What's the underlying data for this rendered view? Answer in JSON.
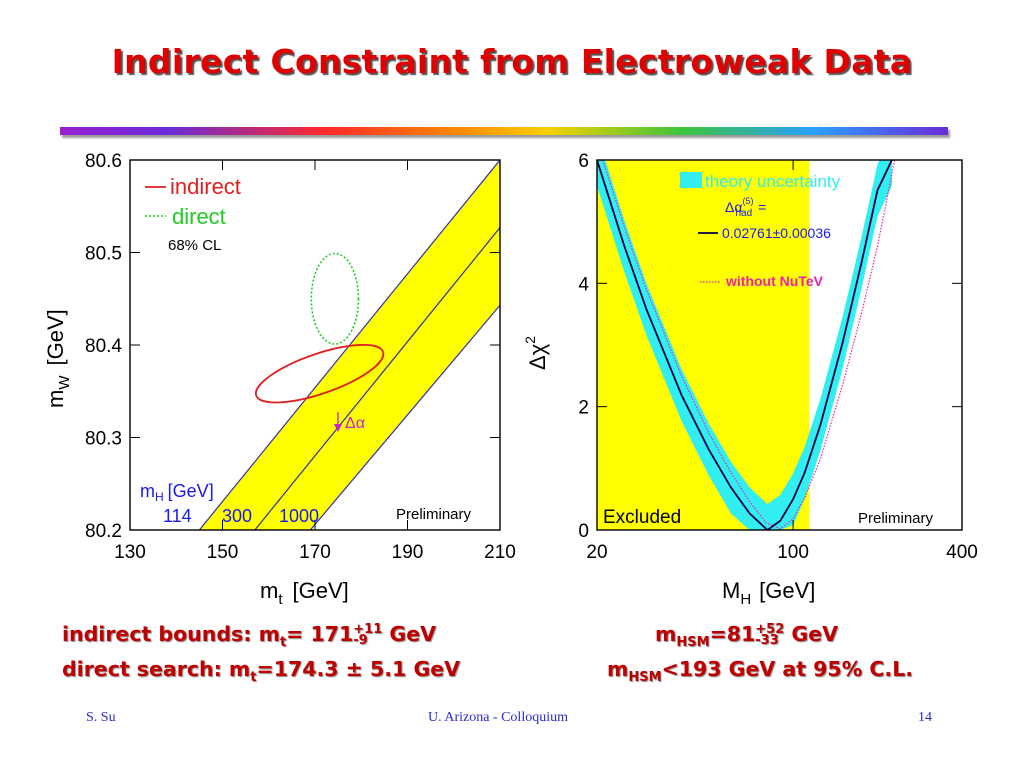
{
  "slide": {
    "title": "Indirect Constraint from Electroweak Data",
    "footer": {
      "author": "S. Su",
      "venue": "U. Arizona - Colloquium",
      "page": "14"
    },
    "summary": {
      "indirect": {
        "label": "indirect bounds: m",
        "sub": "t",
        "eq": "= 171",
        "up": "+11",
        "down": "-9",
        "unit": " GeV"
      },
      "direct": {
        "label": "direct search: m",
        "sub": "t",
        "value": "=174.3 ± 5.1 GeV"
      },
      "mhsm": {
        "label": "m",
        "sub": "HSM",
        "eq": "=81",
        "up": "+52",
        "down": "-33",
        "unit": " GeV"
      },
      "limit": {
        "label": "m",
        "sub": "HSM",
        "value": "<193 GeV at 95% C.L."
      }
    }
  },
  "chart_data": [
    {
      "type": "contour",
      "xlabel": "m",
      "xlabel_sub": "t",
      "xlabel_unit": "[GeV]",
      "ylabel": "m",
      "ylabel_sub": "W",
      "ylabel_unit": "[GeV]",
      "xlim": [
        130,
        210
      ],
      "ylim": [
        80.2,
        80.6
      ],
      "xticks": [
        "130",
        "150",
        "170",
        "190",
        "210"
      ],
      "yticks": [
        "80.2",
        "80.3",
        "80.4",
        "80.5",
        "80.6"
      ],
      "legend": [
        {
          "name": "indirect",
          "color": "#e02020",
          "style": "solid"
        },
        {
          "name": "direct",
          "color": "#22cc22",
          "style": "dotted"
        }
      ],
      "cl_label": "68% CL",
      "mh_label": "m",
      "mh_label_sub": "H",
      "mh_label_unit": "[GeV]",
      "mh_values": [
        "114",
        "300",
        "1000"
      ],
      "sm_band_color": "#ffff00",
      "sm_lines": [
        {
          "mh": "114",
          "points": [
            [
              145,
              80.2
            ],
            [
              210,
              80.6
            ]
          ]
        },
        {
          "mh": "300",
          "points": [
            [
              157,
              80.2
            ],
            [
              210,
              80.527
            ]
          ]
        },
        {
          "mh": "1000",
          "points": [
            [
              169,
              80.2
            ],
            [
              210,
              80.443
            ]
          ]
        }
      ],
      "indirect_ellipse": {
        "center": [
          171,
          80.369
        ],
        "half_width": 14.5,
        "half_height": 0.0215,
        "rotation_deg": -19
      },
      "direct_ellipse": {
        "center": [
          174.3,
          80.45
        ],
        "half_width": 5.1,
        "half_height": 0.049
      },
      "delta_alpha_label": "Δα",
      "annotation": "Preliminary"
    },
    {
      "type": "line",
      "xlabel": "M",
      "xlabel_sub": "H",
      "xlabel_unit": "[GeV]",
      "ylabel": "Δχ",
      "ylabel_sup": "2",
      "xscale": "log",
      "xlim": [
        20,
        400
      ],
      "ylim": [
        0,
        6
      ],
      "xticks": [
        "20",
        "100",
        "400"
      ],
      "yticks": [
        "0",
        "2",
        "4",
        "6"
      ],
      "excluded_region": [
        20,
        114.4
      ],
      "excluded_label": "Excluded",
      "annotation": "Preliminary",
      "band_color": "#33eef0",
      "legend": [
        {
          "name": "theory uncertainty",
          "color": "#33eef0"
        },
        {
          "name": "0.02761±0.00036",
          "color": "#000044"
        },
        {
          "name": "without NuTeV",
          "color": "#ee22aa"
        }
      ],
      "legend_alpha_label": "Δα",
      "legend_alpha_sup": "(5)",
      "legend_alpha_sub": "had",
      "legend_alpha_eq": "=",
      "curve": {
        "x": [
          20,
          25,
          30,
          40,
          50,
          60,
          70,
          81,
          90,
          100,
          110,
          125,
          150,
          175,
          200,
          225
        ],
        "y": [
          6.0,
          4.61,
          3.58,
          2.19,
          1.31,
          0.69,
          0.27,
          0.0,
          0.15,
          0.5,
          0.93,
          1.7,
          3.03,
          4.32,
          5.51,
          6.0
        ]
      },
      "curve_no_nutev": {
        "x": [
          21,
          25,
          30,
          40,
          50,
          60,
          70,
          80,
          90,
          100,
          110,
          125,
          150,
          175,
          200,
          230
        ],
        "y": [
          6.0,
          4.92,
          3.9,
          2.5,
          1.58,
          0.93,
          0.46,
          0.12,
          0.02,
          0.18,
          0.52,
          1.15,
          2.35,
          3.5,
          4.6,
          6.0
        ]
      },
      "band_halfwidth": 0.42
    }
  ]
}
